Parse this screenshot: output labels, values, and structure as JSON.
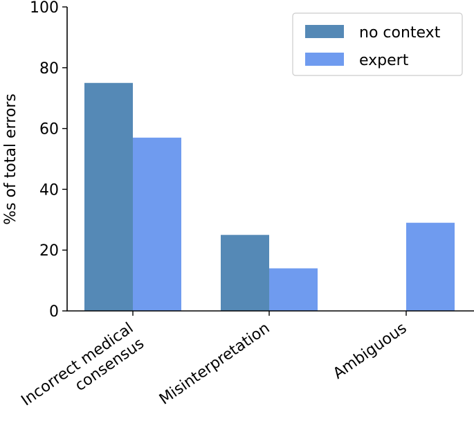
{
  "chart_data": {
    "type": "bar",
    "title": "",
    "xlabel": "",
    "ylabel": "%s of total errors",
    "categories": [
      "Incorrect medical\nconsensus",
      "Misinterpretation",
      "Ambiguous"
    ],
    "series": [
      {
        "name": "no context",
        "values": [
          75,
          25,
          0
        ],
        "color": "#5589b6"
      },
      {
        "name": "expert",
        "values": [
          57,
          14,
          29
        ],
        "color": "#6f9bef"
      }
    ],
    "ylim": [
      0,
      100
    ],
    "yticks": [
      0,
      20,
      40,
      60,
      80,
      100
    ],
    "xtick_rotation": -35,
    "grid": false,
    "legend_position": "top-right"
  }
}
